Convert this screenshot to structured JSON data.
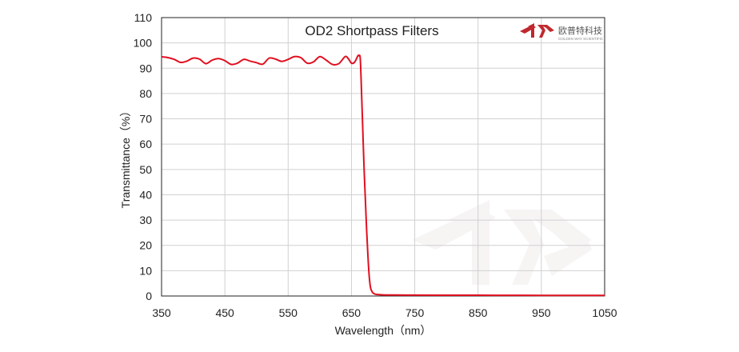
{
  "chart_data": {
    "type": "line",
    "title": "OD2  Shortpass Filters",
    "xlabel": "Wavelength（nm）",
    "ylabel": "Transmittance（%）",
    "xlim": [
      350,
      1050
    ],
    "ylim": [
      0,
      110
    ],
    "xticks": [
      350,
      450,
      550,
      650,
      750,
      850,
      950,
      1050
    ],
    "yticks": [
      0,
      10,
      20,
      30,
      40,
      50,
      60,
      70,
      80,
      90,
      100,
      110
    ],
    "grid": true,
    "colors": {
      "line": "#e01020",
      "grid": "#d0d0d0",
      "axis": "#222222"
    },
    "series": [
      {
        "values_x": [
          350,
          360,
          370,
          380,
          390,
          400,
          410,
          420,
          430,
          440,
          450,
          460,
          470,
          480,
          490,
          500,
          510,
          520,
          530,
          540,
          550,
          560,
          570,
          580,
          590,
          600,
          610,
          620,
          630,
          640,
          645,
          650,
          655,
          660,
          662,
          664,
          666,
          668,
          670,
          672,
          674,
          676,
          678,
          680,
          682,
          684,
          686,
          688,
          690,
          700,
          720,
          750,
          800,
          850,
          900,
          950,
          1000,
          1050
        ],
        "values_y": [
          94.5,
          94.2,
          93.5,
          92.3,
          92.8,
          94.0,
          93.6,
          91.8,
          93.2,
          93.8,
          93.0,
          91.5,
          92.0,
          93.5,
          92.8,
          92.2,
          91.6,
          94.0,
          93.6,
          92.7,
          93.5,
          94.6,
          94.2,
          92.0,
          92.5,
          94.6,
          93.2,
          91.5,
          91.8,
          94.6,
          93.8,
          92.0,
          92.4,
          94.8,
          95.0,
          93.5,
          80.0,
          65.0,
          50.0,
          38.0,
          26.0,
          16.0,
          8.0,
          3.5,
          2.0,
          1.2,
          0.9,
          0.7,
          0.6,
          0.45,
          0.4,
          0.35,
          0.3,
          0.3,
          0.28,
          0.25,
          0.25,
          0.25
        ]
      }
    ]
  },
  "logo": {
    "text": "欧普特科技",
    "sub": "GOLDEN WAY SCIENTIFIC"
  }
}
